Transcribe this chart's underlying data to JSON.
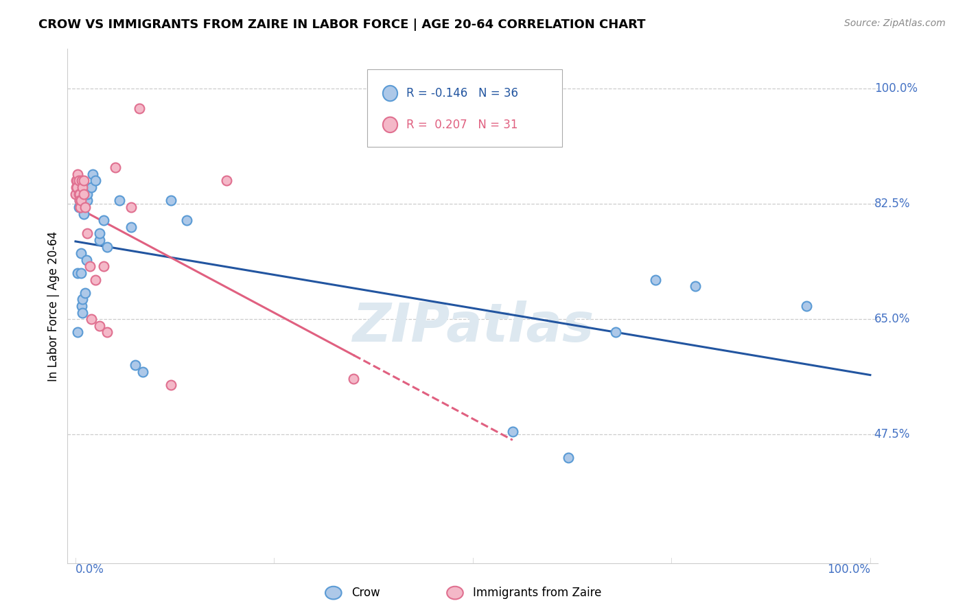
{
  "title": "CROW VS IMMIGRANTS FROM ZAIRE IN LABOR FORCE | AGE 20-64 CORRELATION CHART",
  "source": "Source: ZipAtlas.com",
  "ylabel": "In Labor Force | Age 20-64",
  "ytick_labels": [
    "100.0%",
    "82.5%",
    "65.0%",
    "47.5%"
  ],
  "ytick_values": [
    1.0,
    0.825,
    0.65,
    0.475
  ],
  "xlim": [
    -0.01,
    1.01
  ],
  "ylim": [
    0.28,
    1.06
  ],
  "crow_color": "#adc8e8",
  "crow_edge_color": "#5b9bd5",
  "zaire_color": "#f4b8c8",
  "zaire_edge_color": "#e07090",
  "trend_crow_color": "#2255a0",
  "trend_zaire_color": "#e06080",
  "watermark": "ZIPatlas",
  "watermark_color": "#dde8f0",
  "legend_crow_label": "Crow",
  "legend_zaire_label": "Immigrants from Zaire",
  "legend_crow_R": "-0.146",
  "legend_crow_N": "36",
  "legend_zaire_R": "0.207",
  "legend_zaire_N": "31",
  "crow_x": [
    0.003,
    0.003,
    0.004,
    0.005,
    0.006,
    0.006,
    0.007,
    0.007,
    0.008,
    0.009,
    0.009,
    0.01,
    0.01,
    0.012,
    0.014,
    0.015,
    0.015,
    0.02,
    0.022,
    0.025,
    0.03,
    0.03,
    0.035,
    0.04,
    0.055,
    0.07,
    0.075,
    0.085,
    0.12,
    0.14,
    0.55,
    0.62,
    0.68,
    0.73,
    0.78,
    0.92
  ],
  "crow_y": [
    0.63,
    0.72,
    0.82,
    0.83,
    0.84,
    0.83,
    0.75,
    0.72,
    0.67,
    0.68,
    0.66,
    0.82,
    0.81,
    0.69,
    0.74,
    0.83,
    0.84,
    0.85,
    0.87,
    0.86,
    0.77,
    0.78,
    0.8,
    0.76,
    0.83,
    0.79,
    0.58,
    0.57,
    0.83,
    0.8,
    0.48,
    0.44,
    0.63,
    0.71,
    0.7,
    0.67
  ],
  "zaire_x": [
    0.0,
    0.001,
    0.001,
    0.002,
    0.002,
    0.003,
    0.004,
    0.004,
    0.005,
    0.005,
    0.006,
    0.006,
    0.007,
    0.008,
    0.009,
    0.01,
    0.01,
    0.012,
    0.015,
    0.018,
    0.02,
    0.025,
    0.03,
    0.035,
    0.04,
    0.05,
    0.07,
    0.08,
    0.12,
    0.19,
    0.35
  ],
  "zaire_y": [
    0.84,
    0.86,
    0.85,
    0.86,
    0.85,
    0.87,
    0.86,
    0.84,
    0.84,
    0.83,
    0.82,
    0.82,
    0.83,
    0.86,
    0.85,
    0.86,
    0.84,
    0.82,
    0.78,
    0.73,
    0.65,
    0.71,
    0.64,
    0.73,
    0.63,
    0.88,
    0.82,
    0.97,
    0.55,
    0.86,
    0.56
  ],
  "marker_size": 100,
  "marker_linewidth": 1.5,
  "grid_color": "#cccccc",
  "background_color": "#ffffff",
  "xtick_positions": [
    0.0,
    0.25,
    0.5,
    0.75,
    1.0
  ],
  "ax_border_color": "#cccccc"
}
